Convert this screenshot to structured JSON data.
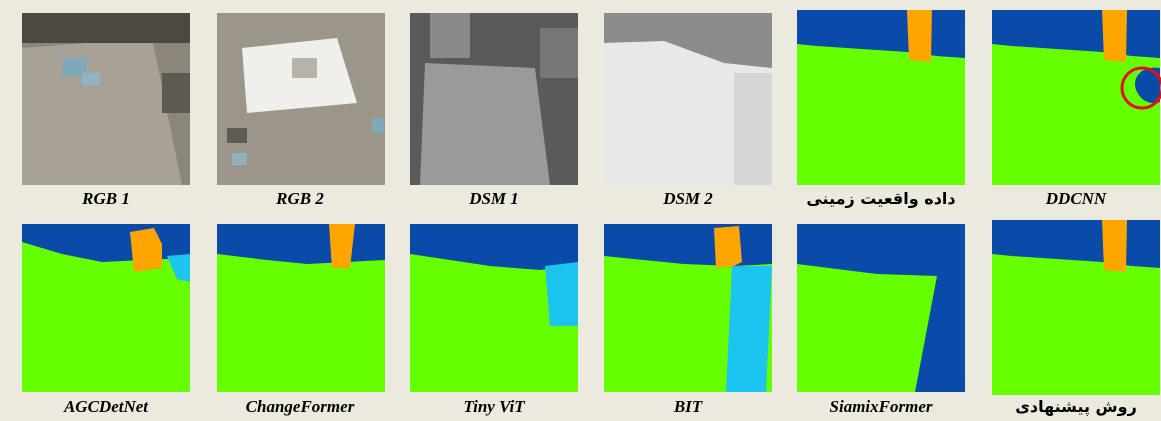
{
  "figure": {
    "panels": [
      {
        "caption": "RGB 1"
      },
      {
        "caption": "RGB 2"
      },
      {
        "caption": "DSM 1"
      },
      {
        "caption": "DSM 2"
      },
      {
        "caption": "داده واقعیت زمینی"
      },
      {
        "caption": "DDCNN"
      },
      {
        "caption": "AGCDetNet"
      },
      {
        "caption": "ChangeFormer"
      },
      {
        "caption": "Tiny ViT"
      },
      {
        "caption": "BIT"
      },
      {
        "caption": "SiamixFormer"
      },
      {
        "caption": "روش پیشنهادی"
      }
    ]
  }
}
